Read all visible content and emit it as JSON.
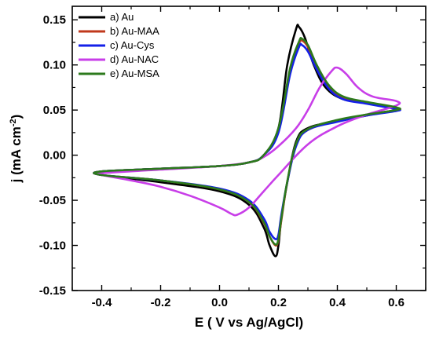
{
  "chart_data": {
    "type": "line",
    "xlabel_parts": [
      "E ( V vs Ag/AgCl)"
    ],
    "ylabel_parts": [
      "j (mA cm",
      "-2",
      ")"
    ],
    "xlim": [
      -0.5,
      0.7
    ],
    "ylim": [
      -0.15,
      0.165
    ],
    "xticks": [
      -0.4,
      -0.2,
      0.0,
      0.2,
      0.4,
      0.6
    ],
    "xtick_labels": [
      "-0.4",
      "-0.2",
      "0.0",
      "0.2",
      "0.4",
      "0.6"
    ],
    "yticks": [
      -0.15,
      -0.1,
      -0.05,
      0.0,
      0.05,
      0.1,
      0.15
    ],
    "ytick_labels": [
      "-0.15",
      "-0.10",
      "-0.05",
      "0.00",
      "0.05",
      "0.10",
      "0.15"
    ],
    "grid": false,
    "legend_position": "top-left",
    "series": [
      {
        "name": "a) Au",
        "color": "#000000",
        "x": [
          -0.4,
          -0.2,
          0.0,
          0.1,
          0.15,
          0.2,
          0.23,
          0.26,
          0.27,
          0.29,
          0.32,
          0.36,
          0.42,
          0.5,
          0.6,
          0.6,
          0.5,
          0.4,
          0.3,
          0.26,
          0.23,
          0.21,
          0.2,
          0.19,
          0.17,
          0.15,
          0.1,
          0.0,
          -0.2,
          -0.4
        ],
        "y": [
          -0.018,
          -0.015,
          -0.012,
          -0.008,
          0.0,
          0.03,
          0.1,
          0.14,
          0.142,
          0.13,
          0.1,
          0.075,
          0.062,
          0.058,
          0.052,
          0.05,
          0.045,
          0.038,
          0.03,
          0.015,
          -0.03,
          -0.07,
          -0.1,
          -0.112,
          -0.1,
          -0.08,
          -0.055,
          -0.04,
          -0.03,
          -0.022
        ]
      },
      {
        "name": "b) Au-MAA",
        "color": "#c0391c",
        "x": [
          -0.4,
          -0.2,
          0.0,
          0.1,
          0.15,
          0.2,
          0.24,
          0.27,
          0.28,
          0.3,
          0.33,
          0.37,
          0.42,
          0.5,
          0.6,
          0.6,
          0.5,
          0.4,
          0.3,
          0.26,
          0.23,
          0.21,
          0.2,
          0.19,
          0.17,
          0.15,
          0.1,
          0.0,
          -0.2,
          -0.4
        ],
        "y": [
          -0.018,
          -0.015,
          -0.012,
          -0.008,
          0.0,
          0.028,
          0.095,
          0.124,
          0.127,
          0.12,
          0.098,
          0.076,
          0.064,
          0.058,
          0.052,
          0.05,
          0.044,
          0.038,
          0.028,
          0.012,
          -0.03,
          -0.072,
          -0.094,
          -0.1,
          -0.09,
          -0.075,
          -0.052,
          -0.038,
          -0.028,
          -0.022
        ]
      },
      {
        "name": "c) Au-Cys",
        "color": "#1420e8",
        "x": [
          -0.4,
          -0.2,
          0.0,
          0.1,
          0.15,
          0.2,
          0.24,
          0.27,
          0.28,
          0.3,
          0.33,
          0.37,
          0.42,
          0.5,
          0.6,
          0.6,
          0.5,
          0.4,
          0.3,
          0.26,
          0.23,
          0.21,
          0.2,
          0.19,
          0.17,
          0.15,
          0.1,
          0.0,
          -0.2,
          -0.4
        ],
        "y": [
          -0.018,
          -0.015,
          -0.012,
          -0.008,
          0.0,
          0.025,
          0.09,
          0.12,
          0.122,
          0.115,
          0.095,
          0.074,
          0.062,
          0.057,
          0.051,
          0.049,
          0.044,
          0.037,
          0.028,
          0.01,
          -0.03,
          -0.066,
          -0.088,
          -0.093,
          -0.085,
          -0.07,
          -0.05,
          -0.037,
          -0.028,
          -0.022
        ]
      },
      {
        "name": "d) Au-NAC",
        "color": "#c83ee8",
        "x": [
          -0.4,
          -0.2,
          0.0,
          0.1,
          0.15,
          0.2,
          0.26,
          0.3,
          0.34,
          0.38,
          0.4,
          0.43,
          0.47,
          0.52,
          0.6,
          0.6,
          0.5,
          0.4,
          0.3,
          0.2,
          0.15,
          0.1,
          0.06,
          0.04,
          0.0,
          -0.1,
          -0.2,
          -0.3,
          -0.4
        ],
        "y": [
          -0.02,
          -0.016,
          -0.012,
          -0.008,
          -0.002,
          0.01,
          0.03,
          0.05,
          0.075,
          0.093,
          0.097,
          0.09,
          0.075,
          0.065,
          0.06,
          0.055,
          0.045,
          0.032,
          0.012,
          -0.022,
          -0.04,
          -0.058,
          -0.066,
          -0.065,
          -0.058,
          -0.045,
          -0.035,
          -0.028,
          -0.022
        ]
      },
      {
        "name": "e) Au-MSA",
        "color": "#2c7a1c",
        "x": [
          -0.4,
          -0.2,
          0.0,
          0.1,
          0.15,
          0.2,
          0.24,
          0.27,
          0.28,
          0.3,
          0.33,
          0.37,
          0.42,
          0.5,
          0.6,
          0.6,
          0.5,
          0.4,
          0.3,
          0.26,
          0.23,
          0.21,
          0.2,
          0.19,
          0.17,
          0.15,
          0.1,
          0.0,
          -0.2,
          -0.4
        ],
        "y": [
          -0.018,
          -0.015,
          -0.012,
          -0.008,
          0.0,
          0.03,
          0.097,
          0.126,
          0.129,
          0.122,
          0.1,
          0.078,
          0.065,
          0.059,
          0.053,
          0.05,
          0.045,
          0.039,
          0.029,
          0.013,
          -0.029,
          -0.07,
          -0.093,
          -0.099,
          -0.09,
          -0.074,
          -0.052,
          -0.038,
          -0.028,
          -0.022
        ]
      }
    ]
  }
}
